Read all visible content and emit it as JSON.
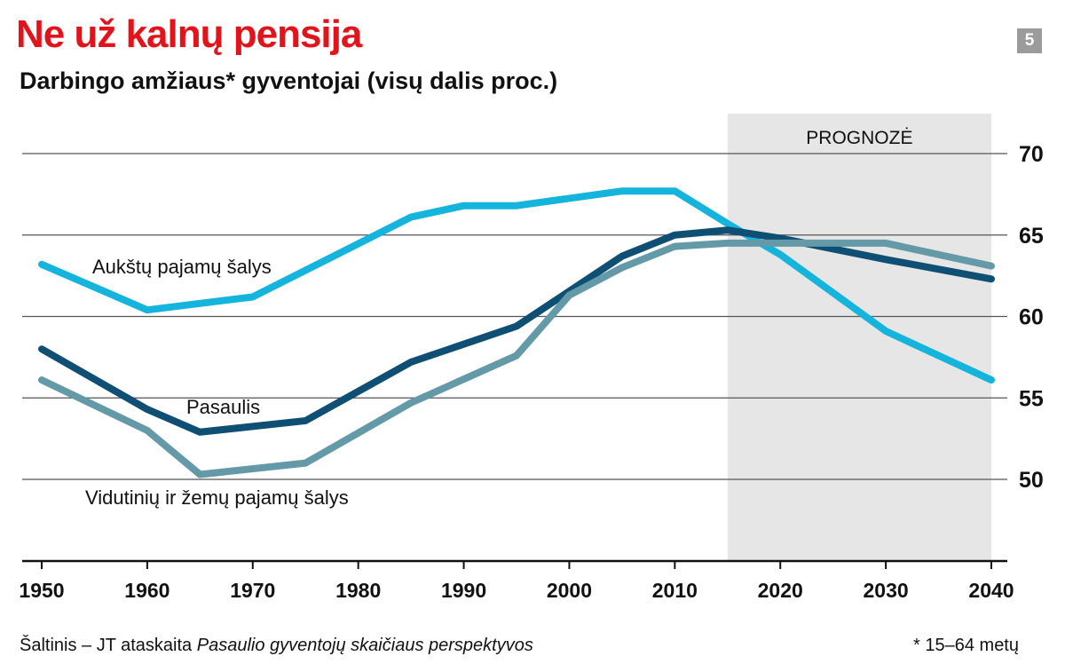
{
  "header": {
    "title": "Ne už kalnų pensija",
    "subtitle": "Darbingo amžiaus* gyventojai (visų dalis proc.)",
    "badge": "5"
  },
  "footer": {
    "source_prefix": "Šaltinis – JT ataskaita ",
    "source_title": "Pasaulio gyventojų skaičiaus perspektyvos",
    "note": "* 15–64 metų"
  },
  "chart_data": {
    "type": "line",
    "title": "Darbingo amžiaus* gyventojai (visų dalis proc.)",
    "xlabel": "",
    "ylabel": "",
    "xlim": [
      1950,
      2040
    ],
    "ylim": [
      45,
      72
    ],
    "x_ticks": [
      "1950",
      "1960",
      "1970",
      "1980",
      "1990",
      "2000",
      "2010",
      "2020",
      "2030",
      "2040"
    ],
    "y_ticks": [
      "50",
      "55",
      "60",
      "65",
      "70"
    ],
    "y_axis_side": "right",
    "grid": true,
    "forecast_region": {
      "label": "PROGNOZĖ",
      "from": 2015,
      "to": 2040,
      "color": "#e6e6e6"
    },
    "series": [
      {
        "name": "Aukštų pajamų šalys",
        "color": "#14b4dc",
        "x": [
          1950,
          1960,
          1970,
          1985,
          1990,
          1995,
          2005,
          2010,
          2015,
          2020,
          2030,
          2040
        ],
        "y": [
          63.2,
          60.4,
          61.2,
          66.1,
          66.8,
          66.8,
          67.7,
          67.7,
          65.7,
          63.8,
          59.1,
          56.1
        ]
      },
      {
        "name": "Pasaulis",
        "color": "#0f4f73",
        "x": [
          1950,
          1960,
          1965,
          1975,
          1985,
          1995,
          2005,
          2010,
          2015,
          2020,
          2030,
          2040
        ],
        "y": [
          58.0,
          54.3,
          52.9,
          53.6,
          57.2,
          59.4,
          63.7,
          65.0,
          65.3,
          64.8,
          63.5,
          62.3
        ]
      },
      {
        "name": "Vidutinių ir žemų pajamų šalys",
        "color": "#6499a8",
        "x": [
          1950,
          1960,
          1965,
          1975,
          1985,
          1995,
          2000,
          2005,
          2010,
          2015,
          2030,
          2040
        ],
        "y": [
          56.1,
          53.0,
          50.3,
          51.0,
          54.7,
          57.6,
          61.3,
          63.0,
          64.3,
          64.5,
          64.5,
          63.1
        ]
      }
    ]
  }
}
